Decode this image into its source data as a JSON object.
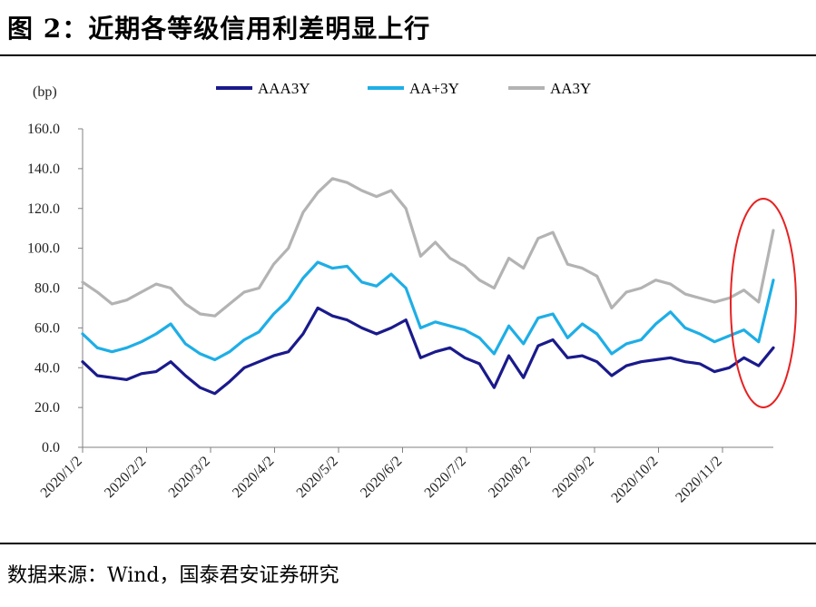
{
  "figure": {
    "title": "图 2：近期各等级信用利差明显上行",
    "source": "数据来源：Wind，国泰君安证券研究"
  },
  "chart_data": {
    "type": "line",
    "unit": "(bp)",
    "ylim": [
      0,
      160
    ],
    "y_ticks": [
      "0.0",
      "20.0",
      "40.0",
      "60.0",
      "80.0",
      "100.0",
      "120.0",
      "140.0",
      "160.0"
    ],
    "x_ticks": [
      "2020/1/2",
      "2020/2/2",
      "2020/3/2",
      "2020/4/2",
      "2020/5/2",
      "2020/6/2",
      "2020/7/2",
      "2020/8/2",
      "2020/9/2",
      "2020/10/2",
      "2020/11/2"
    ],
    "x": [
      "2020/1/2",
      "2020/1/9",
      "2020/1/16",
      "2020/1/23",
      "2020/1/30",
      "2020/2/6",
      "2020/2/13",
      "2020/2/20",
      "2020/2/27",
      "2020/3/5",
      "2020/3/12",
      "2020/3/19",
      "2020/3/26",
      "2020/4/2",
      "2020/4/9",
      "2020/4/16",
      "2020/4/23",
      "2020/4/30",
      "2020/5/7",
      "2020/5/14",
      "2020/5/21",
      "2020/5/28",
      "2020/6/4",
      "2020/6/11",
      "2020/6/18",
      "2020/6/25",
      "2020/7/2",
      "2020/7/9",
      "2020/7/16",
      "2020/7/23",
      "2020/7/30",
      "2020/8/6",
      "2020/8/13",
      "2020/8/20",
      "2020/8/27",
      "2020/9/3",
      "2020/9/10",
      "2020/9/17",
      "2020/9/24",
      "2020/10/1",
      "2020/10/8",
      "2020/10/15",
      "2020/10/22",
      "2020/10/29",
      "2020/11/5",
      "2020/11/12",
      "2020/11/19",
      "2020/11/26"
    ],
    "series": [
      {
        "name": "AAA3Y",
        "color": "#1a1a8c",
        "values": [
          43,
          36,
          35,
          34,
          37,
          38,
          43,
          36,
          30,
          27,
          33,
          40,
          43,
          46,
          48,
          57,
          70,
          66,
          64,
          60,
          57,
          60,
          64,
          45,
          48,
          50,
          45,
          42,
          30,
          46,
          35,
          51,
          54,
          45,
          46,
          43,
          36,
          41,
          43,
          44,
          45,
          43,
          42,
          38,
          40,
          45,
          41,
          50
        ]
      },
      {
        "name": "AA+3Y",
        "color": "#1eaee6",
        "values": [
          57,
          50,
          48,
          50,
          53,
          57,
          62,
          52,
          47,
          44,
          48,
          54,
          58,
          67,
          74,
          85,
          93,
          90,
          91,
          83,
          81,
          87,
          80,
          60,
          63,
          61,
          59,
          55,
          47,
          61,
          52,
          65,
          67,
          55,
          62,
          57,
          47,
          52,
          54,
          62,
          68,
          60,
          57,
          53,
          56,
          59,
          53,
          84
        ]
      },
      {
        "name": "AA3Y",
        "color": "#b3b3b3",
        "values": [
          83,
          78,
          72,
          74,
          78,
          82,
          80,
          72,
          67,
          66,
          72,
          78,
          80,
          92,
          100,
          118,
          128,
          135,
          133,
          129,
          126,
          129,
          120,
          96,
          103,
          95,
          91,
          84,
          80,
          95,
          90,
          105,
          108,
          92,
          90,
          86,
          70,
          78,
          80,
          84,
          82,
          77,
          75,
          73,
          75,
          79,
          73,
          109
        ]
      }
    ]
  }
}
